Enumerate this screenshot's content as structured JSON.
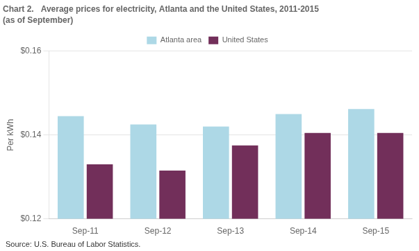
{
  "chart_data": {
    "type": "bar",
    "title": "Chart 2.   Average prices for electricity, Atlanta and the United States, 2011-2015",
    "subtitle": "(as of September)",
    "y_label": "Per kWh",
    "annotations": [
      "Source: U.S. Bureau of Labor Statistics."
    ],
    "categories": [
      "Sep-11",
      "Sep-12",
      "Sep-13",
      "Sep-14",
      "Sep-15"
    ],
    "series": [
      {
        "name": "Atlanta area",
        "color": "#ADD8E6",
        "values": [
          0.1445,
          0.1425,
          0.142,
          0.145,
          0.1462
        ]
      },
      {
        "name": "United States",
        "color": "#722F5A",
        "values": [
          0.133,
          0.1315,
          0.1375,
          0.1405,
          0.1405
        ]
      }
    ],
    "ylim": [
      0.12,
      0.16
    ],
    "yticks": [
      {
        "value": 0.12,
        "label": "$0.12"
      },
      {
        "value": 0.14,
        "label": "$0.14"
      },
      {
        "value": 0.16,
        "label": "$0.16"
      }
    ],
    "grid": true,
    "legend": "top"
  }
}
